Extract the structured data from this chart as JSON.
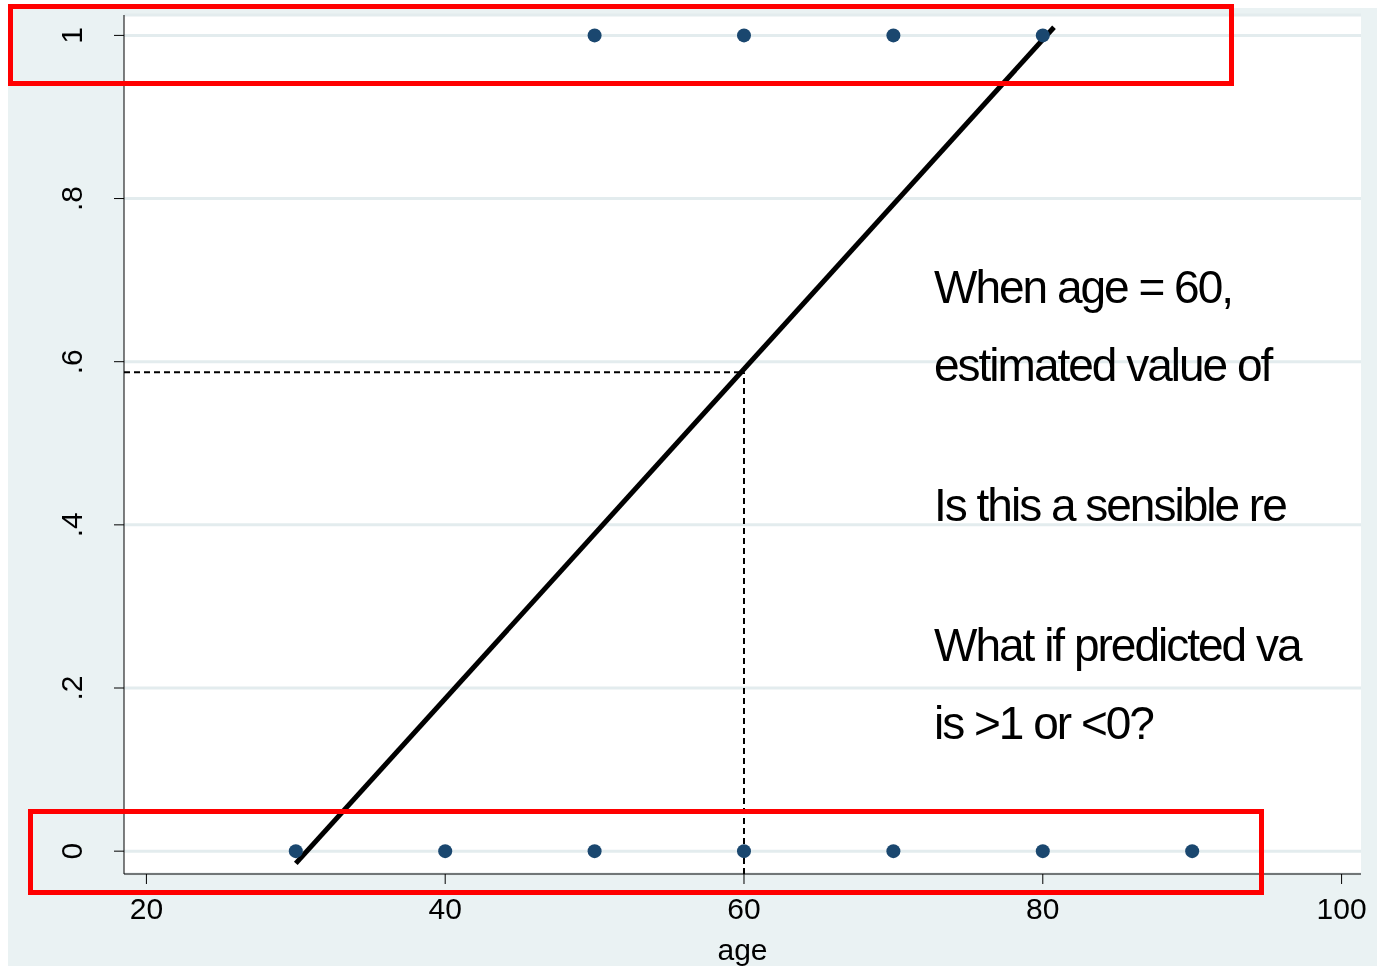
{
  "chart_data": {
    "type": "scatter",
    "xlabel": "age",
    "xlim": [
      18.5,
      101.3
    ],
    "xticks": [
      20,
      40,
      60,
      80,
      100
    ],
    "ylim": [
      -0.028,
      1.025
    ],
    "yticks": [
      0,
      {
        "value": 0.2,
        "label": ".2"
      },
      {
        "value": 0.4,
        "label": ".4"
      },
      {
        "value": 0.6,
        "label": ".6"
      },
      {
        "value": 0.8,
        "label": ".8"
      },
      1
    ],
    "grid": "y",
    "series": [
      {
        "marker": "circle",
        "color": "#1a476f",
        "x": [
          50,
          60,
          70,
          80,
          30,
          40,
          50,
          60,
          70,
          80,
          90
        ],
        "values": [
          1,
          1,
          1,
          1,
          0,
          0,
          0,
          0,
          0,
          0,
          0
        ]
      },
      {
        "type": "line",
        "color": "#000000",
        "x": [
          30,
          80.75
        ],
        "values": [
          -0.015,
          1.01
        ]
      }
    ],
    "ref_lines": [
      {
        "axis": "x",
        "value": 60,
        "line_style": "dashed",
        "color": "#000000"
      },
      {
        "axis": "y",
        "value": 0.587,
        "line_style": "dashed",
        "color": "#000000"
      }
    ],
    "annotations": [
      "When age = 60,",
      "estimated value of",
      "Is this a sensible re",
      "What if predicted va",
      "is >1 or <0?"
    ]
  }
}
